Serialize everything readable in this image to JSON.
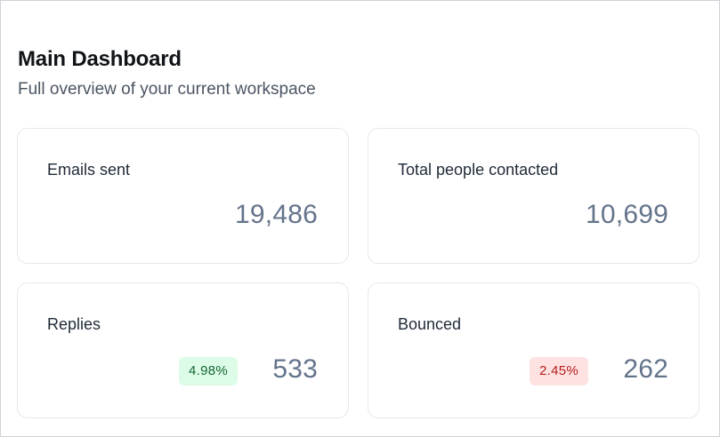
{
  "header": {
    "title": "Main Dashboard",
    "subtitle": "Full overview of your current workspace"
  },
  "colors": {
    "positive_badge_bg": "#dcfce7",
    "positive_badge_text": "#166534",
    "negative_badge_bg": "#fee2e2",
    "negative_badge_text": "#b91c1c",
    "value_text": "#64748b"
  },
  "stats": {
    "emails_sent": {
      "label": "Emails sent",
      "value": "19,486"
    },
    "people_contacted": {
      "label": "Total people contacted",
      "value": "10,699"
    },
    "replies": {
      "label": "Replies",
      "value": "533",
      "rate": "4.98%"
    },
    "bounced": {
      "label": "Bounced",
      "value": "262",
      "rate": "2.45%"
    }
  }
}
